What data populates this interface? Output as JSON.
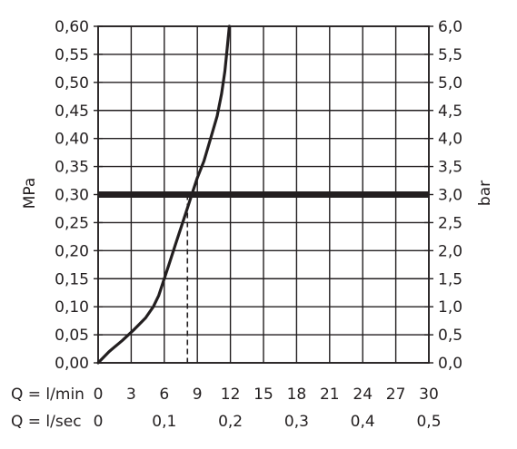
{
  "chart_data": {
    "type": "line",
    "xlim": [
      0,
      30
    ],
    "ylim": [
      0,
      0.6
    ],
    "y_right_lim": [
      0,
      6.0
    ],
    "grid": true,
    "ylabel": "MPa",
    "y_right_label": "bar",
    "y_ticks": [
      "0,00",
      "0,05",
      "0,10",
      "0,15",
      "0,20",
      "0,25",
      "0,30",
      "0,35",
      "0,40",
      "0,45",
      "0,50",
      "0,55",
      "0,60"
    ],
    "y_right_ticks": [
      "0,0",
      "0,5",
      "1,0",
      "1,5",
      "2,0",
      "2,5",
      "3,0",
      "3,5",
      "4,0",
      "4,5",
      "5,0",
      "5,5",
      "6,0"
    ],
    "x_rows": [
      {
        "label": "Q = l/min",
        "ticks": [
          {
            "x": 0,
            "text": "0"
          },
          {
            "x": 3,
            "text": "3"
          },
          {
            "x": 6,
            "text": "6"
          },
          {
            "x": 9,
            "text": "9"
          },
          {
            "x": 12,
            "text": "12"
          },
          {
            "x": 15,
            "text": "15"
          },
          {
            "x": 18,
            "text": "18"
          },
          {
            "x": 21,
            "text": "21"
          },
          {
            "x": 24,
            "text": "24"
          },
          {
            "x": 27,
            "text": "27"
          },
          {
            "x": 30,
            "text": "30"
          }
        ]
      },
      {
        "label": "Q = l/sec",
        "ticks": [
          {
            "x": 0,
            "text": "0"
          },
          {
            "x": 6,
            "text": "0,1"
          },
          {
            "x": 12,
            "text": "0,2"
          },
          {
            "x": 18,
            "text": "0,3"
          },
          {
            "x": 24,
            "text": "0,4"
          },
          {
            "x": 30,
            "text": "0,5"
          }
        ]
      }
    ],
    "series": [
      {
        "points": [
          [
            0,
            0.0
          ],
          [
            1.0,
            0.02
          ],
          [
            2.2,
            0.04
          ],
          [
            3.3,
            0.06
          ],
          [
            4.3,
            0.08
          ],
          [
            5.0,
            0.1
          ],
          [
            5.5,
            0.12
          ],
          [
            6.0,
            0.15
          ],
          [
            6.5,
            0.18
          ],
          [
            7.0,
            0.21
          ],
          [
            7.5,
            0.24
          ],
          [
            8.0,
            0.27
          ],
          [
            8.5,
            0.3
          ],
          [
            9.0,
            0.33
          ],
          [
            9.6,
            0.36
          ],
          [
            10.2,
            0.4
          ],
          [
            10.8,
            0.44
          ],
          [
            11.2,
            0.48
          ],
          [
            11.5,
            0.52
          ],
          [
            11.7,
            0.56
          ],
          [
            11.9,
            0.6
          ]
        ]
      }
    ],
    "reference_line": {
      "y": 0.3
    },
    "marker_line": {
      "x": 8.1,
      "y": 0.3
    },
    "colors": {
      "curve": "#231f20",
      "grid": "#231f20",
      "reference": "#231f20"
    }
  }
}
